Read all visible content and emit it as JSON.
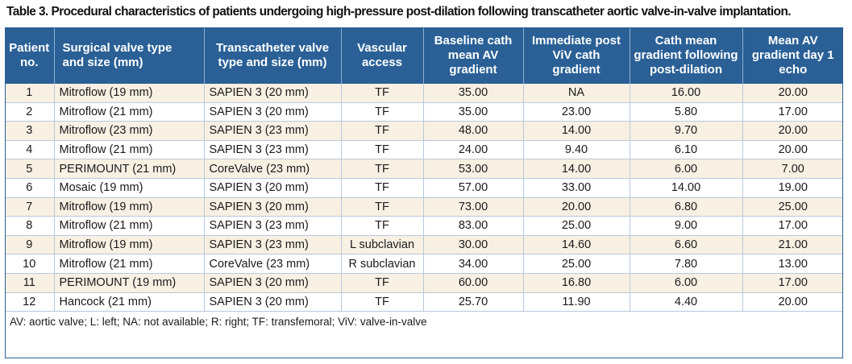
{
  "caption": "Table 3. Procedural characteristics of patients undergoing high-pressure post-dilation following transcatheter aortic valve-in-valve implantation.",
  "headers": [
    [
      "Patient",
      "no."
    ],
    [
      "Surgical valve type",
      "and size (mm)"
    ],
    [
      "Transcatheter valve",
      "type and size (mm)"
    ],
    [
      "Vascular",
      "access"
    ],
    [
      "Baseline cath",
      "mean AV",
      "gradient"
    ],
    [
      "Immediate post",
      "ViV cath",
      "gradient"
    ],
    [
      "Cath mean",
      "gradient following",
      "post-dilation"
    ],
    [
      "Mean AV",
      "gradient day 1",
      "echo"
    ]
  ],
  "rows": [
    [
      "1",
      "Mitroflow (19 mm)",
      "SAPIEN 3 (20 mm)",
      "TF",
      "35.00",
      "NA",
      "16.00",
      "20.00"
    ],
    [
      "2",
      "Mitroflow (21 mm)",
      "SAPIEN 3 (20 mm)",
      "TF",
      "35.00",
      "23.00",
      "5.80",
      "17.00"
    ],
    [
      "3",
      "Mitroflow (23 mm)",
      "SAPIEN 3 (23 mm)",
      "TF",
      "48.00",
      "14.00",
      "9.70",
      "20.00"
    ],
    [
      "4",
      "Mitroflow (21 mm)",
      "SAPIEN 3 (23 mm)",
      "TF",
      "24.00",
      "9.40",
      "6.10",
      "20.00"
    ],
    [
      "5",
      "PERIMOUNT (21 mm)",
      "CoreValve (23 mm)",
      "TF",
      "53.00",
      "14.00",
      "6.00",
      "7.00"
    ],
    [
      "6",
      "Mosaic (19 mm)",
      "SAPIEN 3 (20 mm)",
      "TF",
      "57.00",
      "33.00",
      "14.00",
      "19.00"
    ],
    [
      "7",
      "Mitroflow (19 mm)",
      "SAPIEN 3 (20 mm)",
      "TF",
      "73.00",
      "20.00",
      "6.80",
      "25.00"
    ],
    [
      "8",
      "Mitroflow (21 mm)",
      "SAPIEN 3 (23 mm)",
      "TF",
      "83.00",
      "25.00",
      "9.00",
      "17.00"
    ],
    [
      "9",
      "Mitroflow (19 mm)",
      "SAPIEN 3 (23 mm)",
      "L subclavian",
      "30.00",
      "14.60",
      "6.60",
      "21.00"
    ],
    [
      "10",
      "Mitroflow (21 mm)",
      "CoreValve (23 mm)",
      "R subclavian",
      "34.00",
      "25.00",
      "7.80",
      "13.00"
    ],
    [
      "11",
      "PERIMOUNT (19 mm)",
      "SAPIEN 3 (20 mm)",
      "TF",
      "60.00",
      "16.80",
      "6.00",
      "17.00"
    ],
    [
      "12",
      "Hancock (21 mm)",
      "SAPIEN 3 (20 mm)",
      "TF",
      "25.70",
      "11.90",
      "4.40",
      "20.00"
    ]
  ],
  "footnote": "AV: aortic valve; L: left; NA: not available; R: right; TF: transfemoral; ViV: valve-in-valve",
  "colors": {
    "header_bg": "#2a6096",
    "odd_row_bg": "#f8f0e3",
    "even_row_bg": "#ffffff"
  }
}
